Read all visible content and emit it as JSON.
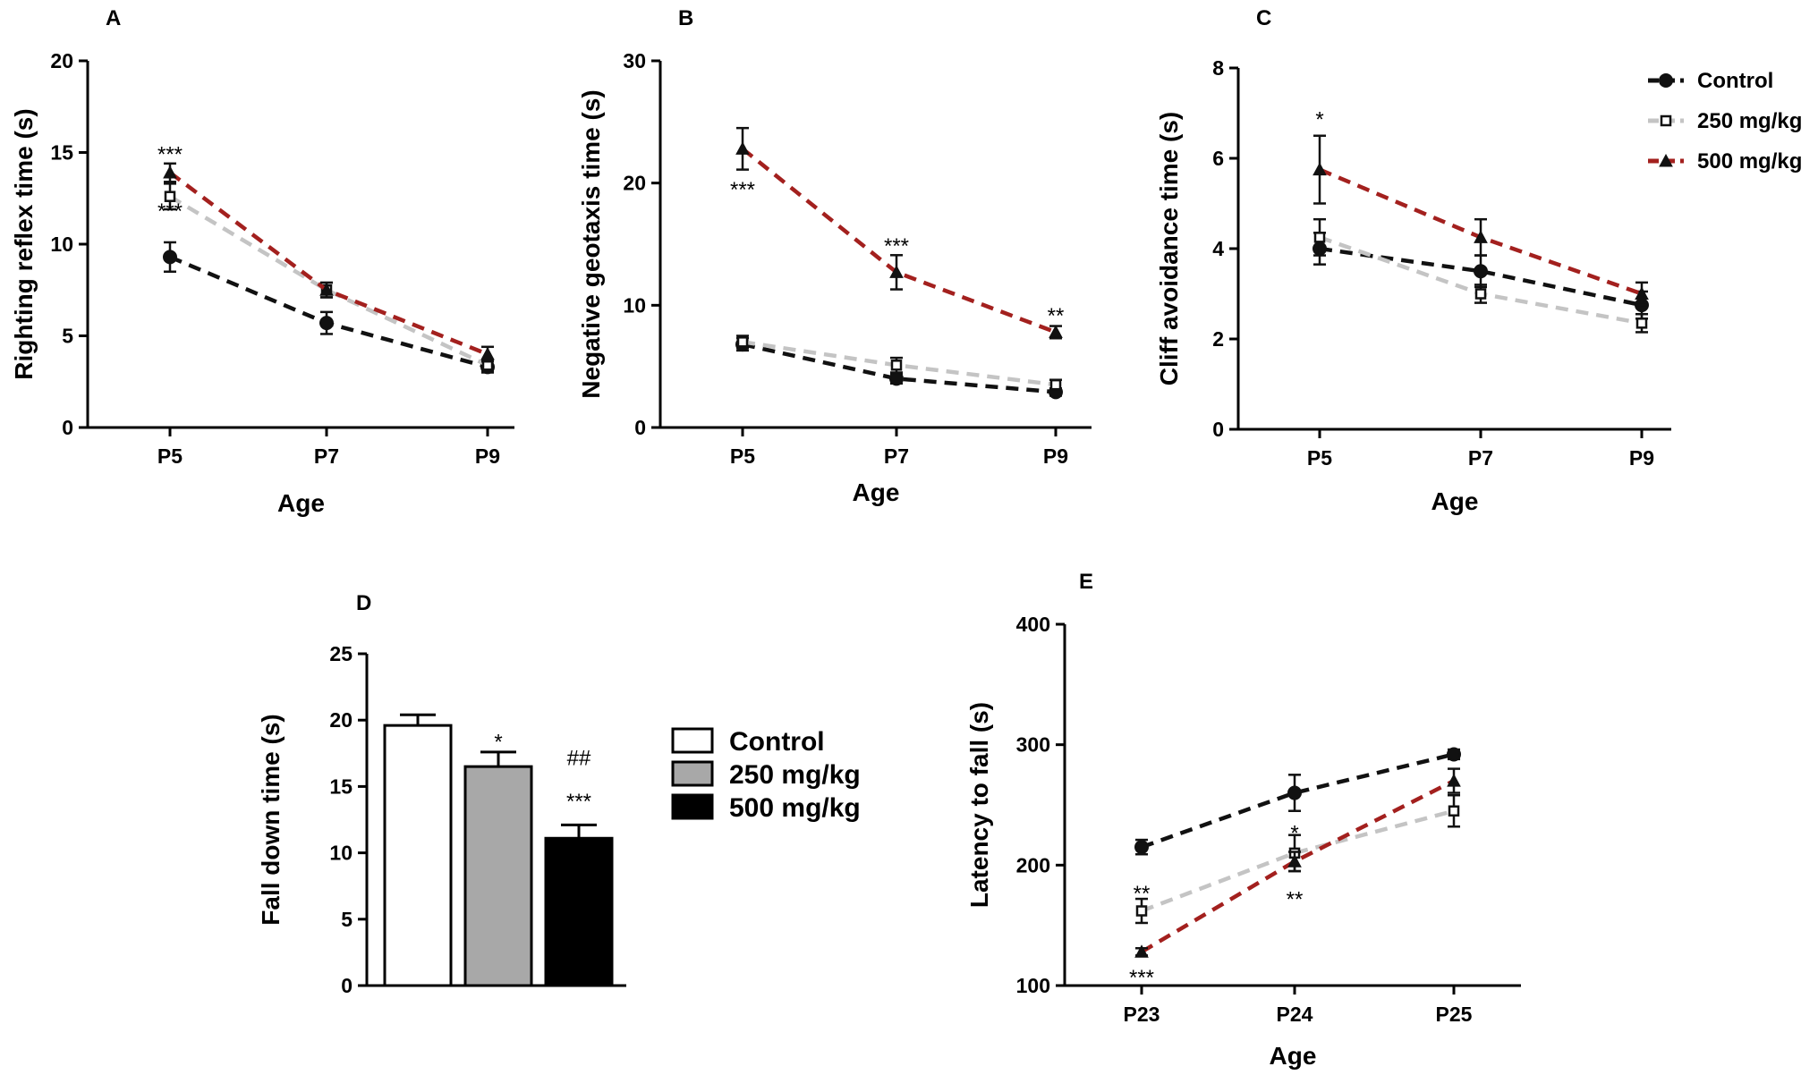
{
  "colors": {
    "control": "#111111",
    "dose250": "#c4c4c4",
    "dose500": "#a3201e"
  },
  "legend": [
    {
      "label": "Control",
      "series": "control"
    },
    {
      "label": "250 mg/kg",
      "series": "dose250"
    },
    {
      "label": "500 mg/kg",
      "series": "dose500"
    }
  ],
  "chart_data": [
    {
      "panel": "A",
      "type": "line",
      "categories": [
        "P5",
        "P7",
        "P9"
      ],
      "xlabel": "Age",
      "ylabel": "Righting reflex time (s)",
      "ylim": [
        0,
        20
      ],
      "yticks": [
        0,
        5,
        10,
        15,
        20
      ],
      "series": [
        {
          "key": "control",
          "name": "Control",
          "marker": "circle",
          "values": [
            9.3,
            5.7,
            3.3
          ],
          "errors": [
            0.8,
            0.6,
            0.3
          ]
        },
        {
          "key": "dose250",
          "name": "250 mg/kg",
          "marker": "square",
          "values": [
            12.6,
            7.5,
            3.4
          ],
          "errors": [
            0.7,
            0.4,
            0.3
          ]
        },
        {
          "key": "dose500",
          "name": "500 mg/kg",
          "marker": "triangle",
          "values": [
            13.9,
            7.5,
            4.0
          ],
          "errors": [
            0.5,
            0.4,
            0.4
          ]
        }
      ],
      "annotations": [
        {
          "text": "***",
          "x": "P5",
          "y": 15.0
        },
        {
          "text": "***",
          "x": "P5",
          "y": 11.9
        }
      ]
    },
    {
      "panel": "B",
      "type": "line",
      "categories": [
        "P5",
        "P7",
        "P9"
      ],
      "xlabel": "Age",
      "ylabel": "Negative geotaxis time (s)",
      "ylim": [
        0,
        30
      ],
      "yticks": [
        0,
        10,
        20,
        30
      ],
      "series": [
        {
          "key": "control",
          "name": "Control",
          "marker": "circle",
          "values": [
            6.8,
            4.0,
            2.9
          ],
          "errors": [
            0.5,
            0.4,
            0.3
          ]
        },
        {
          "key": "dose250",
          "name": "250 mg/kg",
          "marker": "square",
          "values": [
            7.0,
            5.1,
            3.5
          ],
          "errors": [
            0.5,
            0.6,
            0.4
          ]
        },
        {
          "key": "dose500",
          "name": "500 mg/kg",
          "marker": "triangle",
          "values": [
            22.8,
            12.7,
            7.8
          ],
          "errors": [
            1.7,
            1.4,
            0.5
          ]
        }
      ],
      "annotations": [
        {
          "text": "***",
          "x": "P5",
          "y": 19.6
        },
        {
          "text": "***",
          "x": "P7",
          "y": 15.0
        },
        {
          "text": "**",
          "x": "P9",
          "y": 9.3
        }
      ]
    },
    {
      "panel": "C",
      "type": "line",
      "categories": [
        "P5",
        "P7",
        "P9"
      ],
      "xlabel": "Age",
      "ylabel": "Cliff avoidance time (s)",
      "ylim": [
        0,
        8
      ],
      "yticks": [
        0,
        2,
        4,
        6,
        8
      ],
      "series": [
        {
          "key": "control",
          "name": "Control",
          "marker": "circle",
          "values": [
            4.0,
            3.5,
            2.75
          ],
          "errors": [
            0.35,
            0.35,
            0.3
          ]
        },
        {
          "key": "dose250",
          "name": "250 mg/kg",
          "marker": "square",
          "values": [
            4.25,
            3.0,
            2.35
          ],
          "errors": [
            0.4,
            0.2,
            0.2
          ]
        },
        {
          "key": "dose500",
          "name": "500 mg/kg",
          "marker": "triangle",
          "values": [
            5.75,
            4.25,
            3.0
          ],
          "errors": [
            0.75,
            0.4,
            0.25
          ]
        }
      ],
      "annotations": [
        {
          "text": "*",
          "x": "P5",
          "y": 6.9
        }
      ]
    },
    {
      "panel": "D",
      "type": "bar",
      "categories": [
        "Control",
        "250 mg/kg",
        "500 mg/kg"
      ],
      "xlabel": "",
      "ylabel": "Fall down time (s)",
      "ylim": [
        0,
        25
      ],
      "yticks": [
        0,
        5,
        10,
        15,
        20,
        25
      ],
      "values": [
        19.6,
        16.5,
        11.1
      ],
      "errors": [
        0.8,
        1.1,
        1.0
      ],
      "fills": [
        "#ffffff",
        "#a8a8a8",
        "#000000"
      ],
      "annotations": [
        {
          "text": "*",
          "bar": 1,
          "y": 18.5
        },
        {
          "text": "##",
          "bar": 2,
          "y": 17.3
        },
        {
          "text": "***",
          "bar": 2,
          "y": 14.0
        }
      ]
    },
    {
      "panel": "E",
      "type": "line",
      "categories": [
        "P23",
        "P24",
        "P25"
      ],
      "xlabel": "Age",
      "ylabel": "Latency to fall (s)",
      "ylim": [
        100,
        400
      ],
      "yticks": [
        100,
        200,
        300,
        400
      ],
      "series": [
        {
          "key": "control",
          "name": "Control",
          "marker": "circle",
          "values": [
            215,
            260,
            292
          ],
          "errors": [
            6,
            15,
            4
          ]
        },
        {
          "key": "dose250",
          "name": "250 mg/kg",
          "marker": "square",
          "values": [
            162,
            210,
            245
          ],
          "errors": [
            10,
            15,
            13
          ]
        },
        {
          "key": "dose500",
          "name": "500 mg/kg",
          "marker": "triangle",
          "values": [
            128,
            203,
            270
          ],
          "errors": [
            3,
            8,
            10
          ]
        }
      ],
      "annotations": [
        {
          "text": "**",
          "x": "P23",
          "y": 178
        },
        {
          "text": "*",
          "x": "P24",
          "y": 228
        },
        {
          "text": "**",
          "x": "P24",
          "y": 173
        },
        {
          "text": "***",
          "x": "P23",
          "y": 108
        }
      ]
    }
  ]
}
